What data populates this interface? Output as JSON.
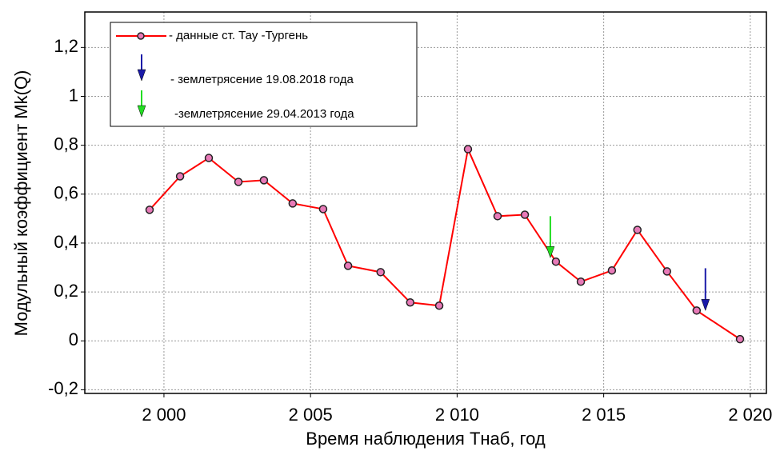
{
  "chart_data": {
    "type": "line",
    "xlabel": "Время наблюдения Tнаб, год",
    "ylabel": "Модульный коэффициент Mk(Q)",
    "x": [
      1999.51,
      2000.55,
      2001.53,
      2002.54,
      2003.41,
      2004.39,
      2005.43,
      2006.28,
      2007.39,
      2008.4,
      2009.39,
      2010.37,
      2011.38,
      2012.31,
      2013.37,
      2014.22,
      2015.28,
      2016.15,
      2017.16,
      2018.17,
      2019.65
    ],
    "series": [
      {
        "name": "- данные ст. Тау -Тургень",
        "color": "#ff0000",
        "marker_color": "#e87ab8",
        "values": [
          0.536,
          0.673,
          0.748,
          0.65,
          0.657,
          0.562,
          0.539,
          0.307,
          0.281,
          0.157,
          0.144,
          0.784,
          0.51,
          0.516,
          0.324,
          0.242,
          0.288,
          0.454,
          0.284,
          0.124,
          0.007
        ]
      }
    ],
    "events": [
      {
        "name": "- землетрясение 19.08.2018 года",
        "color": "#1a1aa8",
        "x": 2018.47,
        "y_from": 0.297,
        "y_to": 0.124
      },
      {
        "name": "-землетрясение 29.04.2013 года",
        "color": "#22dd22",
        "x": 2013.18,
        "y_from": 0.51,
        "y_to": 0.34
      }
    ],
    "xlim": [
      1997.3,
      2020.55
    ],
    "xticks": [
      {
        "value": 2000,
        "label": "2 000"
      },
      {
        "value": 2005,
        "label": "2 005"
      },
      {
        "value": 2010,
        "label": "2 010"
      },
      {
        "value": 2015,
        "label": "2 015"
      },
      {
        "value": 2020,
        "label": "2 020"
      }
    ],
    "ylim": [
      -0.215,
      1.345
    ],
    "yticks": [
      {
        "value": -0.2,
        "label": "-0,2"
      },
      0,
      {
        "value": 0.2,
        "label": "0,2"
      },
      {
        "value": 0.4,
        "label": "0,4"
      },
      {
        "value": 0.6,
        "label": "0,6"
      },
      {
        "value": 0.8,
        "label": "0,8"
      },
      1,
      {
        "value": 1.2,
        "label": "1,2"
      }
    ],
    "grid": true,
    "legend": "upper left"
  }
}
